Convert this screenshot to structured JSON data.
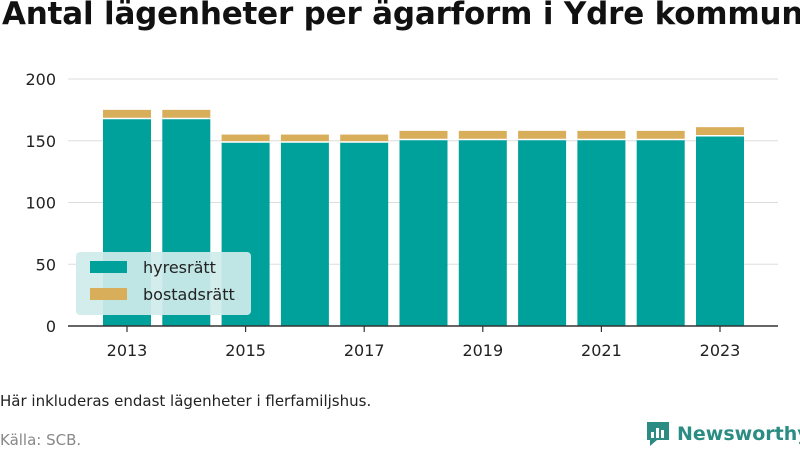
{
  "header": {
    "title": "Antal lägenheter per ägarform i Ydre kommun"
  },
  "footer": {
    "note": "Här inkluderas endast lägenheter i flerfamiljshus.",
    "source": "Källa: SCB.",
    "brand": "Newsworthy"
  },
  "colors": {
    "hyresratt": "#00a19a",
    "bostadsratt": "#d9ae5b",
    "grid": "#dddddd",
    "axis": "#333333",
    "legend_bg": "#cfecec",
    "brand": "#2a8c83"
  },
  "chart_data": {
    "type": "bar",
    "stacked": true,
    "title": "Antal lägenheter per ägarform i Ydre kommun",
    "xlabel": "",
    "ylabel": "",
    "x": [
      2013,
      2014,
      2015,
      2016,
      2017,
      2018,
      2019,
      2020,
      2021,
      2022,
      2023
    ],
    "x_tick_labels": [
      "2013",
      "2015",
      "2017",
      "2019",
      "2021",
      "2023"
    ],
    "ylim": [
      0,
      200
    ],
    "y_ticks": [
      0,
      50,
      100,
      150,
      200
    ],
    "grid": true,
    "legend_position": "bottom-left",
    "series": [
      {
        "name": "hyresrätt",
        "color": "#00a19a",
        "values": [
          168,
          168,
          149,
          149,
          149,
          151,
          151,
          151,
          151,
          151,
          154
        ]
      },
      {
        "name": "bostadsrätt",
        "color": "#d9ae5b",
        "values": [
          7,
          7,
          6,
          6,
          6,
          7,
          7,
          7,
          7,
          7,
          7
        ]
      }
    ]
  }
}
